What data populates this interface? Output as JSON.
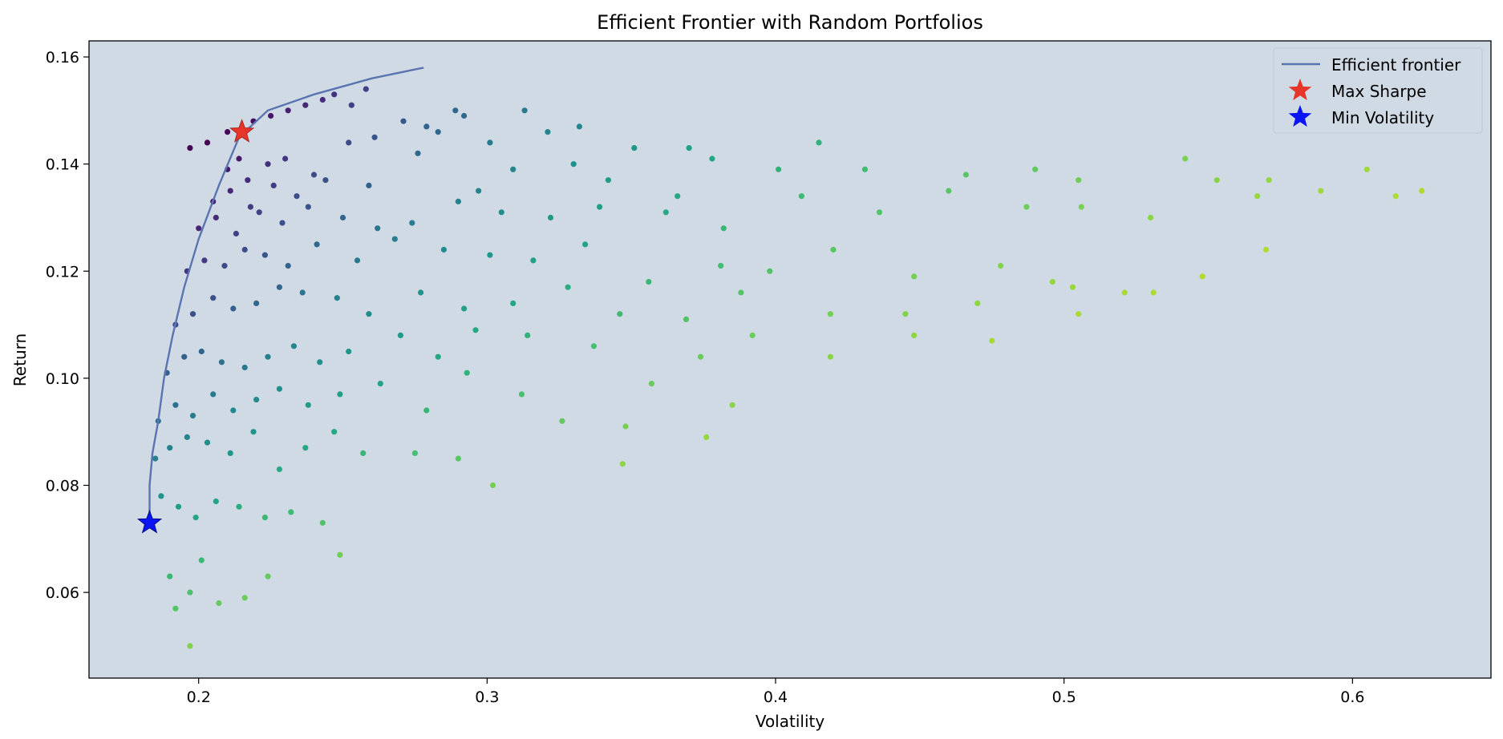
{
  "chart_data": {
    "type": "scatter",
    "title": "Efficient Frontier with Random Portfolios",
    "xlabel": "Volatility",
    "ylabel": "Return",
    "xlim": [
      0.162,
      0.648
    ],
    "ylim": [
      0.044,
      0.163
    ],
    "xticks": [
      "0.2",
      "0.3",
      "0.4",
      "0.5",
      "0.6"
    ],
    "xtick_values": [
      0.2,
      0.3,
      0.4,
      0.5,
      0.6
    ],
    "yticks": [
      "0.06",
      "0.08",
      "0.10",
      "0.12",
      "0.14",
      "0.16"
    ],
    "ytick_values": [
      0.06,
      0.08,
      0.1,
      0.12,
      0.14,
      0.16
    ],
    "grid": false,
    "legend_position": "top-right",
    "colors": {
      "plot_background": "#d0dae5",
      "frontier": "#5a74b0",
      "max_sharpe": "#e8352a",
      "min_volatility": "#0a14f5",
      "colormap": "viridis"
    },
    "legend": [
      {
        "label": "Efficient frontier",
        "marker": "line"
      },
      {
        "label": "Max Sharpe",
        "marker": "star"
      },
      {
        "label": "Min Volatility",
        "marker": "star"
      }
    ],
    "series": [
      {
        "name": "Efficient frontier",
        "kind": "line",
        "x": [
          0.183,
          0.183,
          0.184,
          0.186,
          0.188,
          0.191,
          0.195,
          0.2,
          0.207,
          0.214,
          0.224,
          0.24,
          0.26,
          0.278
        ],
        "y": [
          0.074,
          0.08,
          0.086,
          0.092,
          0.1,
          0.108,
          0.117,
          0.126,
          0.136,
          0.145,
          0.15,
          0.153,
          0.156,
          0.158
        ]
      },
      {
        "name": "Max Sharpe",
        "kind": "point",
        "x": [
          0.215
        ],
        "y": [
          0.146
        ]
      },
      {
        "name": "Min Volatility",
        "kind": "point",
        "x": [
          0.183
        ],
        "y": [
          0.073
        ]
      },
      {
        "name": "",
        "kind": "scatter",
        "x": [
          0.197,
          0.203,
          0.21,
          0.214,
          0.219,
          0.225,
          0.231,
          0.237,
          0.243,
          0.247,
          0.253,
          0.258,
          0.271,
          0.289,
          0.292,
          0.313,
          0.21,
          0.217,
          0.224,
          0.23,
          0.24,
          0.252,
          0.261,
          0.279,
          0.283,
          0.301,
          0.321,
          0.332,
          0.351,
          0.37,
          0.378,
          0.205,
          0.211,
          0.218,
          0.226,
          0.234,
          0.244,
          0.259,
          0.276,
          0.297,
          0.309,
          0.33,
          0.342,
          0.366,
          0.401,
          0.415,
          0.431,
          0.466,
          0.49,
          0.505,
          0.542,
          0.553,
          0.571,
          0.605,
          0.615,
          0.624,
          0.2,
          0.206,
          0.213,
          0.221,
          0.229,
          0.238,
          0.25,
          0.262,
          0.274,
          0.29,
          0.305,
          0.322,
          0.339,
          0.362,
          0.382,
          0.409,
          0.436,
          0.46,
          0.487,
          0.506,
          0.53,
          0.567,
          0.589,
          0.196,
          0.202,
          0.209,
          0.216,
          0.223,
          0.231,
          0.241,
          0.255,
          0.268,
          0.285,
          0.301,
          0.316,
          0.334,
          0.356,
          0.381,
          0.398,
          0.42,
          0.448,
          0.478,
          0.496,
          0.521,
          0.548,
          0.57,
          0.192,
          0.198,
          0.205,
          0.212,
          0.22,
          0.228,
          0.236,
          0.248,
          0.259,
          0.277,
          0.292,
          0.309,
          0.328,
          0.346,
          0.369,
          0.388,
          0.419,
          0.445,
          0.47,
          0.503,
          0.531,
          0.189,
          0.195,
          0.201,
          0.208,
          0.216,
          0.224,
          0.233,
          0.242,
          0.252,
          0.27,
          0.283,
          0.296,
          0.314,
          0.337,
          0.357,
          0.374,
          0.392,
          0.419,
          0.448,
          0.475,
          0.505,
          0.186,
          0.192,
          0.198,
          0.205,
          0.212,
          0.22,
          0.228,
          0.238,
          0.249,
          0.263,
          0.279,
          0.293,
          0.312,
          0.326,
          0.348,
          0.376,
          0.385,
          0.185,
          0.19,
          0.196,
          0.203,
          0.211,
          0.219,
          0.228,
          0.237,
          0.247,
          0.257,
          0.275,
          0.29,
          0.302,
          0.347,
          0.187,
          0.193,
          0.199,
          0.206,
          0.214,
          0.223,
          0.232,
          0.243,
          0.249,
          0.19,
          0.197,
          0.201,
          0.207,
          0.216,
          0.224,
          0.192,
          0.197
        ],
        "y": [
          0.143,
          0.144,
          0.146,
          0.141,
          0.148,
          0.149,
          0.15,
          0.151,
          0.152,
          0.153,
          0.151,
          0.154,
          0.148,
          0.15,
          0.149,
          0.15,
          0.139,
          0.137,
          0.14,
          0.141,
          0.138,
          0.144,
          0.145,
          0.147,
          0.146,
          0.144,
          0.146,
          0.147,
          0.143,
          0.143,
          0.141,
          0.133,
          0.135,
          0.132,
          0.136,
          0.134,
          0.137,
          0.136,
          0.142,
          0.135,
          0.139,
          0.14,
          0.137,
          0.134,
          0.139,
          0.144,
          0.139,
          0.138,
          0.139,
          0.137,
          0.141,
          0.137,
          0.137,
          0.139,
          0.134,
          0.135,
          0.128,
          0.13,
          0.127,
          0.131,
          0.129,
          0.132,
          0.13,
          0.128,
          0.129,
          0.133,
          0.131,
          0.13,
          0.132,
          0.131,
          0.128,
          0.134,
          0.131,
          0.135,
          0.132,
          0.132,
          0.13,
          0.134,
          0.135,
          0.12,
          0.122,
          0.121,
          0.124,
          0.123,
          0.121,
          0.125,
          0.122,
          0.126,
          0.124,
          0.123,
          0.122,
          0.125,
          0.118,
          0.121,
          0.12,
          0.124,
          0.119,
          0.121,
          0.118,
          0.116,
          0.119,
          0.124,
          0.11,
          0.112,
          0.115,
          0.113,
          0.114,
          0.117,
          0.116,
          0.115,
          0.112,
          0.116,
          0.113,
          0.114,
          0.117,
          0.112,
          0.111,
          0.116,
          0.112,
          0.112,
          0.114,
          0.117,
          0.116,
          0.101,
          0.104,
          0.105,
          0.103,
          0.102,
          0.104,
          0.106,
          0.103,
          0.105,
          0.108,
          0.104,
          0.109,
          0.108,
          0.106,
          0.099,
          0.104,
          0.108,
          0.104,
          0.108,
          0.107,
          0.112,
          0.092,
          0.095,
          0.093,
          0.097,
          0.094,
          0.096,
          0.098,
          0.095,
          0.097,
          0.099,
          0.094,
          0.101,
          0.097,
          0.092,
          0.091,
          0.089,
          0.095,
          0.085,
          0.087,
          0.089,
          0.088,
          0.086,
          0.09,
          0.083,
          0.087,
          0.09,
          0.086,
          0.086,
          0.085,
          0.08,
          0.084,
          0.078,
          0.076,
          0.074,
          0.077,
          0.076,
          0.074,
          0.075,
          0.073,
          0.067,
          0.063,
          0.06,
          0.066,
          0.058,
          0.059,
          0.063,
          0.057,
          0.05
        ],
        "note": ""
      }
    ]
  }
}
